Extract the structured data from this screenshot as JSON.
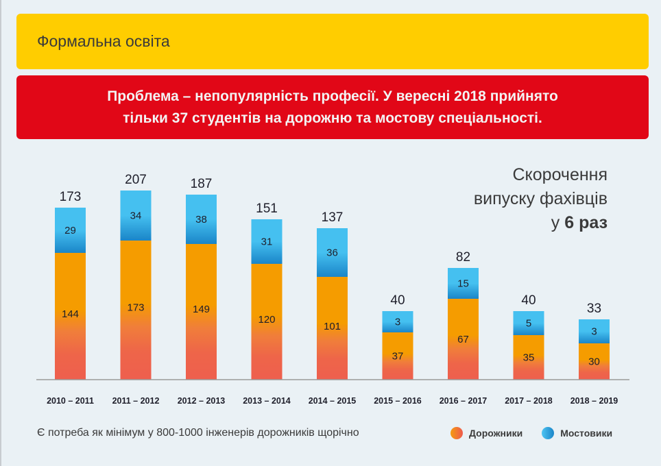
{
  "header": {
    "section_title": "Формальна освіта",
    "problem_lines": [
      "Проблема – непопулярність професії. У вересні 2018 прийнято",
      "тільки 37 студентів на дорожню та мостову спеціальності."
    ]
  },
  "callout": {
    "line1": "Скорочення",
    "line2": "випуску фахівців",
    "line3_prefix": "у ",
    "line3_bold": "6 раз"
  },
  "footnote": "Є потреба як мінімум у 800-1000 інженерів дорожників щорічно",
  "legend": {
    "road": "Дорожники",
    "bridge": "Мостовики"
  },
  "colors": {
    "yellow": "#ffcd00",
    "red": "#e10717",
    "road_top": "#f59c00",
    "road_bottom": "#ee5f4e",
    "bridge_top": "#45c0f0",
    "bridge_bottom": "#1a85c8",
    "axis": "#9a9a9a",
    "text": "#1e1e2a"
  },
  "chart_data": {
    "type": "bar",
    "stacked": true,
    "title": "Скорочення випуску фахівців у 6 раз",
    "xlabel": "",
    "ylabel": "",
    "categories": [
      "2010 – 2011",
      "2011 – 2012",
      "2012 – 2013",
      "2013 – 2014",
      "2014 – 2015",
      "2015 – 2016",
      "2016 – 2017",
      "2017 – 2018",
      "2018 – 2019"
    ],
    "series": [
      {
        "name": "Дорожники",
        "values": [
          144,
          173,
          149,
          120,
          101,
          37,
          67,
          35,
          30
        ]
      },
      {
        "name": "Мостовики",
        "values": [
          29,
          34,
          38,
          31,
          36,
          3,
          15,
          5,
          3
        ]
      }
    ],
    "totals": [
      173,
      207,
      187,
      151,
      137,
      40,
      82,
      40,
      33
    ],
    "legend_position": "bottom-right",
    "grid": false
  }
}
